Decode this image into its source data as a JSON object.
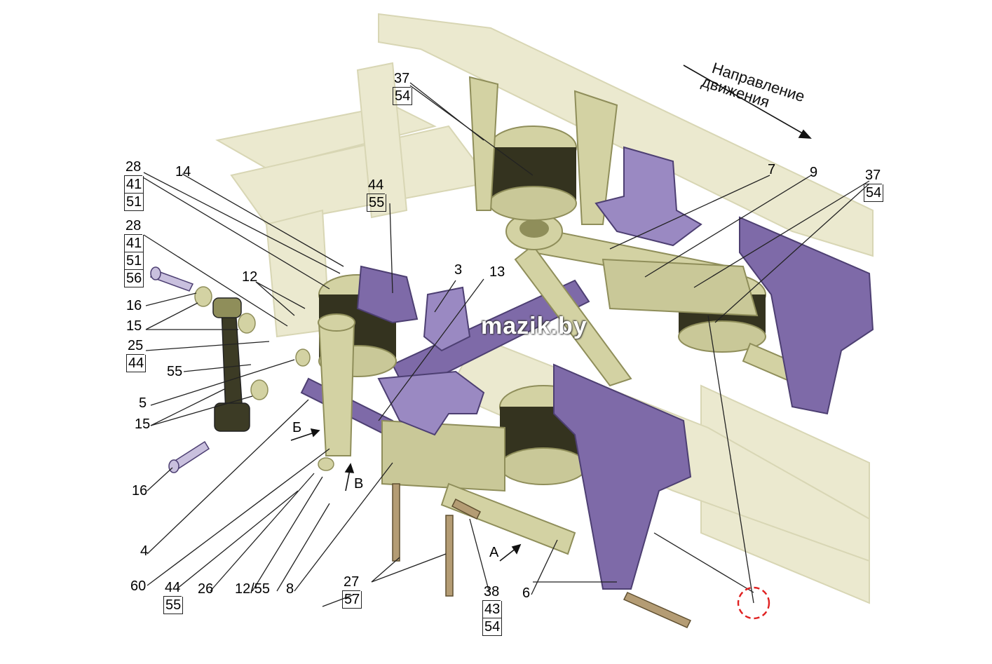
{
  "watermark": "mazik.by",
  "direction": {
    "line1": "Направление",
    "line2": "движения"
  },
  "views": {
    "b": "Б",
    "v": "В",
    "a": "А"
  },
  "callouts": {
    "c28a": [
      "28",
      "41",
      "51"
    ],
    "c28b": [
      "28",
      "41",
      "51",
      "56"
    ],
    "c14": "14",
    "c44a": [
      "44",
      "55"
    ],
    "c37a": [
      "37",
      "54"
    ],
    "c37b": [
      "37",
      "54"
    ],
    "c7": "7",
    "c9": "9",
    "c12": "12",
    "c3": "3",
    "c13": "13",
    "c16a": "16",
    "c15a": "15",
    "c25": [
      "25",
      "44"
    ],
    "c55": "55",
    "c5": "5",
    "c15b": "15",
    "c16b": "16",
    "c4": "4",
    "c60": "60",
    "c44b": [
      "44",
      "55"
    ],
    "c26": "26",
    "c1255": "12/55",
    "c8": "8",
    "c27": [
      "27",
      "57"
    ],
    "c38": [
      "38",
      "43",
      "54"
    ],
    "c6": "6"
  },
  "colors": {
    "frame": "#ebe9cf",
    "frame_edge": "#d8d6b4",
    "olive": "#c9c898",
    "olive_dark": "#8f8e5a",
    "purple": "#7e6aa8",
    "purple_dark": "#4d3f72",
    "rubber": "#34331f",
    "marker": "#e02020"
  }
}
